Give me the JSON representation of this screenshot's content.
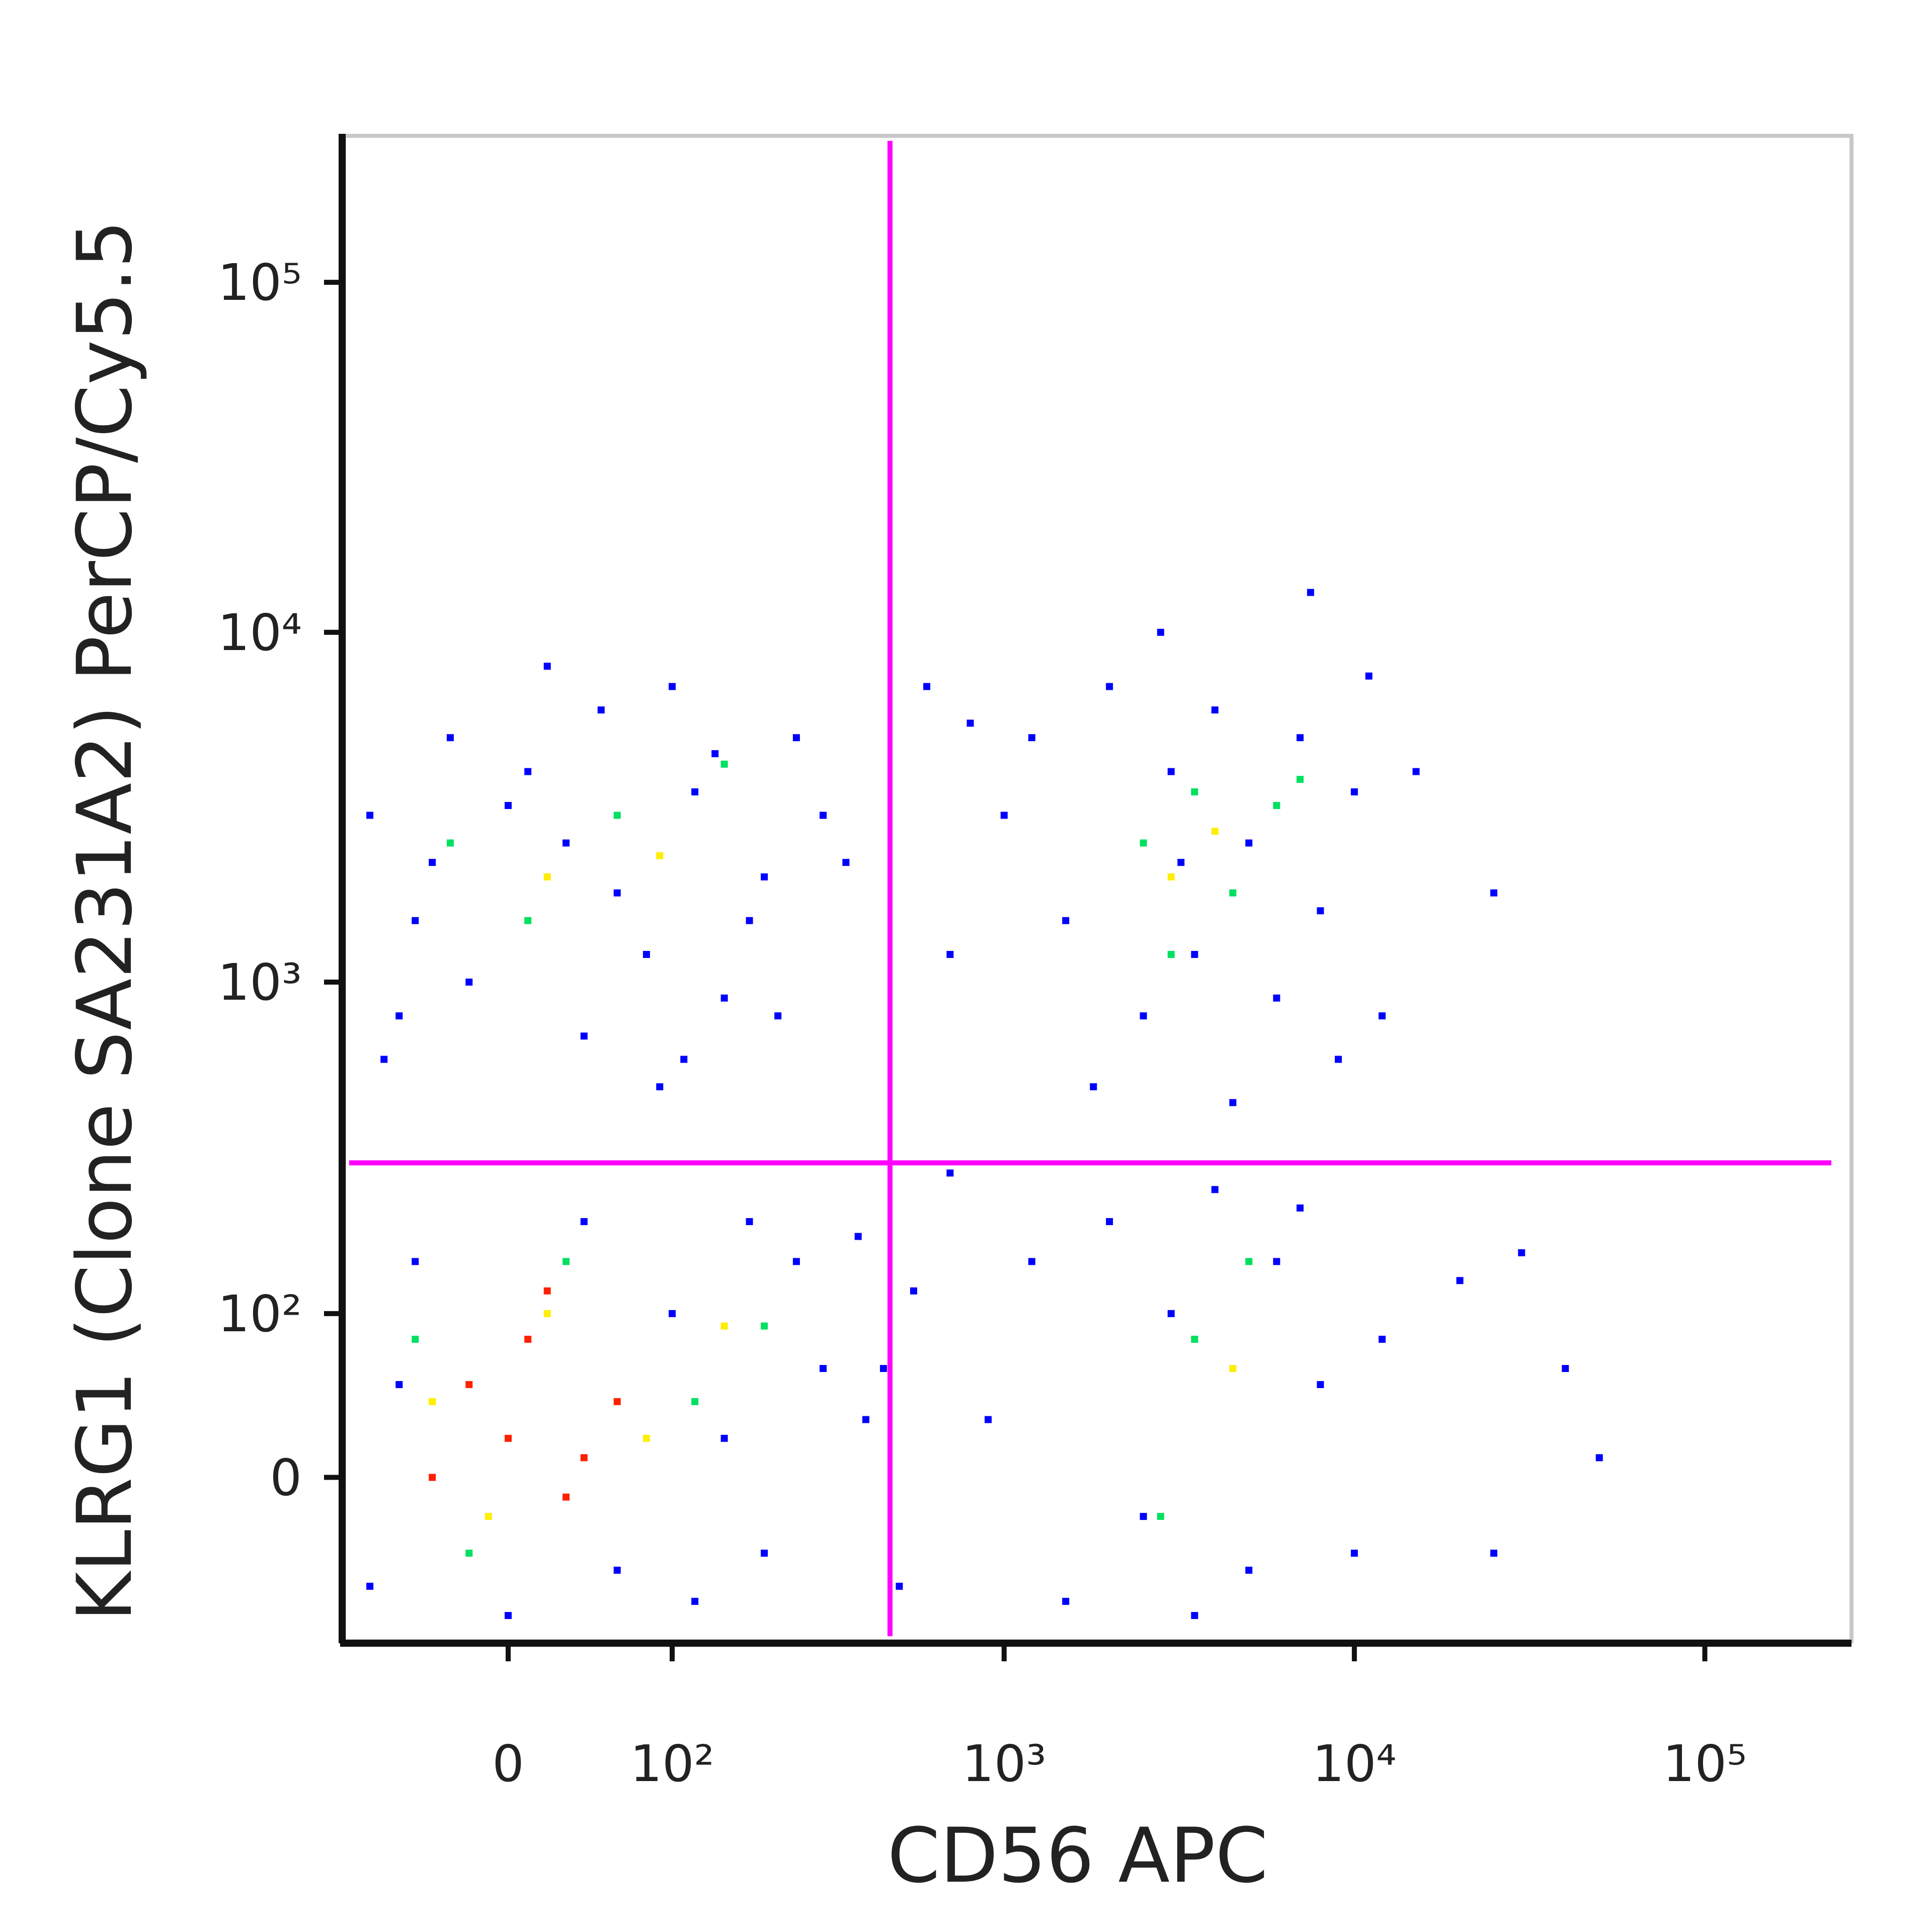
{
  "chart_data": {
    "type": "scatter",
    "xlabel": "CD56 APC",
    "ylabel": "KLRG1 (Clone SA231A2) PerCP/Cy5.5",
    "scale": "biexponential",
    "xlim": [
      -100,
      262144
    ],
    "ylim": [
      -100,
      262144
    ],
    "xticks": [
      0,
      {
        "value": 100,
        "label": "10²"
      },
      {
        "value": 1000,
        "label": "10³"
      },
      {
        "value": 10000,
        "label": "10⁴"
      },
      {
        "value": 100000,
        "label": "10⁵"
      }
    ],
    "yticks": [
      0,
      {
        "value": 100,
        "label": "10²"
      },
      {
        "value": 1000,
        "label": "10³"
      },
      {
        "value": 10000,
        "label": "10⁴"
      },
      {
        "value": 100000,
        "label": "10⁵"
      }
    ],
    "gates": {
      "x": 470,
      "y": 300,
      "color": "#ff00ff"
    },
    "series": [
      {
        "color": "#0000ff",
        "x": [
          -80,
          -50,
          -30,
          -60,
          10,
          30,
          50,
          80,
          120,
          150,
          200,
          250,
          -70,
          40,
          90,
          180,
          300,
          20,
          100,
          60,
          -20,
          140,
          220,
          350,
          0,
          -40,
          110,
          1000,
          1200,
          1500,
          2000,
          2500,
          3000,
          3500,
          4000,
          5000,
          6000,
          7000,
          8000,
          10000,
          12000,
          9000,
          700,
          800,
          600,
          1800,
          2800,
          7500,
          15000,
          25000,
          4500,
          3200,
          11000,
          -80,
          -50,
          0,
          40,
          100,
          150,
          200,
          250,
          -60,
          120,
          300,
          180,
          400,
          60,
          2000,
          2500,
          3000,
          4000,
          5000,
          6000,
          8000,
          10000,
          1200,
          1500,
          7000,
          3500,
          12000,
          20000,
          40000,
          50000,
          25000,
          30000,
          900,
          700,
          500,
          450,
          380,
          550
        ],
        "y": [
          3000,
          1500,
          5000,
          800,
          4000,
          2500,
          6000,
          1200,
          3500,
          900,
          2000,
          5000,
          600,
          700,
          500,
          1500,
          3000,
          8000,
          7000,
          1800,
          1000,
          4500,
          800,
          2200,
          3200,
          2200,
          600,
          3000,
          5000,
          1500,
          7000,
          800,
          4000,
          1200,
          6000,
          2500,
          900,
          5000,
          1600,
          3500,
          800,
          600,
          1200,
          5500,
          7000,
          500,
          10000,
          13000,
          4000,
          1800,
          450,
          2200,
          7500,
          -60,
          150,
          -80,
          200,
          100,
          20,
          -40,
          150,
          50,
          -70,
          60,
          200,
          30,
          -50,
          200,
          -20,
          100,
          250,
          -50,
          150,
          50,
          -40,
          150,
          -70,
          220,
          -80,
          80,
          130,
          60,
          10,
          -40,
          160,
          30,
          280,
          -60,
          60,
          180,
          120
        ]
      },
      {
        "color": "#00e060",
        "x": [
          -30,
          60,
          150,
          10,
          2500,
          3500,
          4500,
          6000,
          3000,
          -50,
          30,
          120,
          -20,
          3500,
          5000,
          2800,
          200,
          7000
        ],
        "y": [
          2500,
          3000,
          4200,
          1500,
          2500,
          3500,
          1800,
          3200,
          1200,
          80,
          150,
          40,
          -40,
          80,
          150,
          -20,
          90,
          3800
        ]
      },
      {
        "color": "#ffee00",
        "x": [
          20,
          90,
          3000,
          4000,
          -40,
          20,
          80,
          150,
          -10,
          4500
        ],
        "y": [
          2000,
          2300,
          2000,
          2700,
          40,
          100,
          20,
          90,
          -20,
          60
        ]
      },
      {
        "color": "#ff2000",
        "x": [
          0,
          -20,
          30,
          10,
          60,
          -40,
          40,
          20
        ],
        "y": [
          20,
          50,
          -10,
          80,
          40,
          0,
          10,
          120
        ]
      }
    ]
  }
}
